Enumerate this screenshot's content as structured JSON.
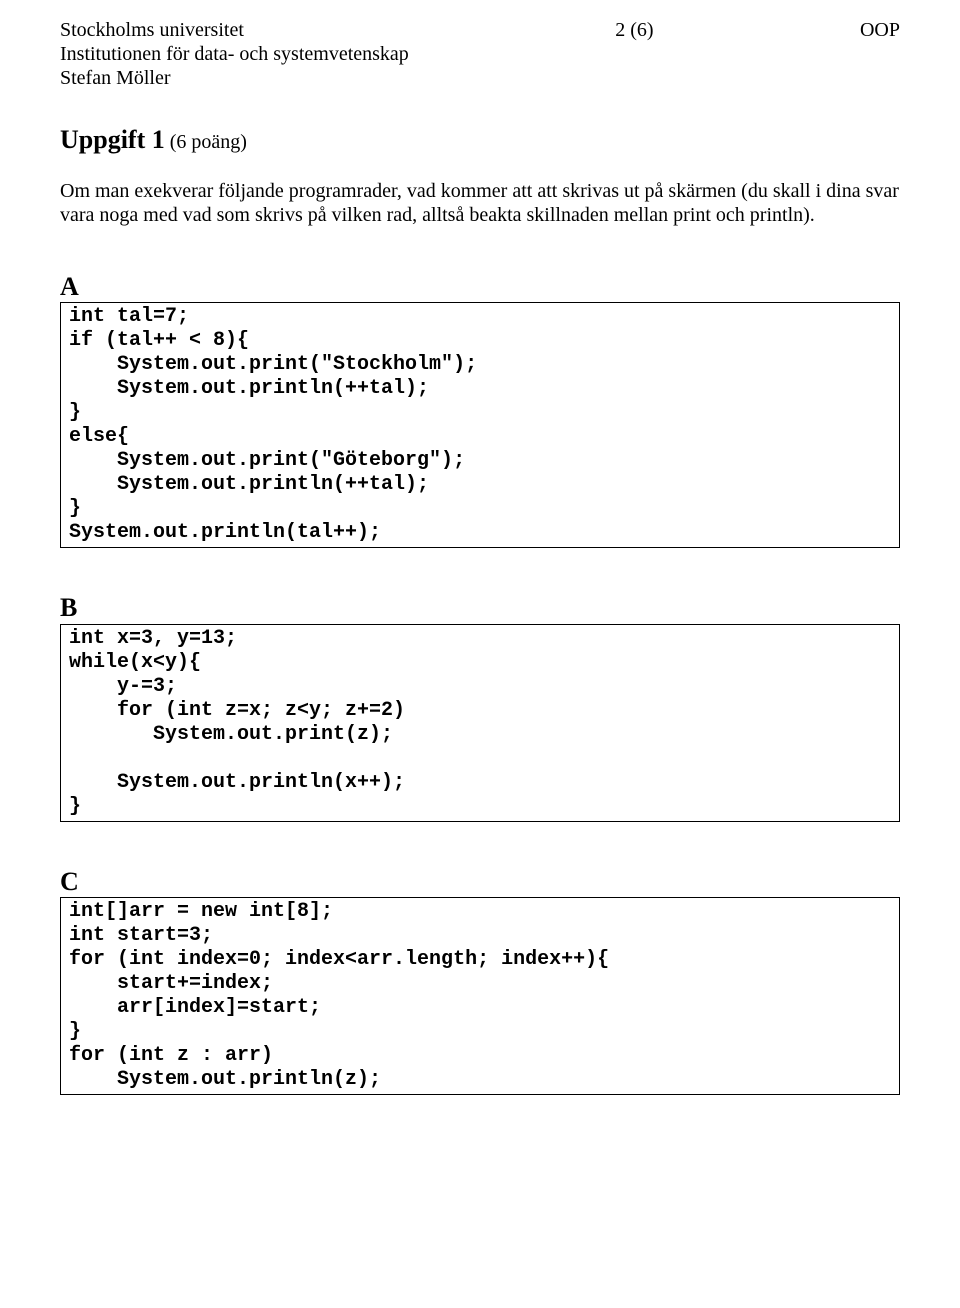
{
  "header": {
    "university": "Stockholms universitet",
    "department": "Institutionen för data- och systemvetenskap",
    "author": "Stefan Möller",
    "page": "2 (6)",
    "course": "OOP"
  },
  "title": {
    "bold": "Uppgift 1",
    "points": " (6 poäng)"
  },
  "intro": "Om man exekverar följande programrader, vad kommer att att skrivas ut på skärmen (du skall i dina svar vara noga med vad som skrivs på vilken rad, alltså beakta skillnaden mellan print och println).",
  "sections": {
    "A": {
      "label": "A",
      "code": "int tal=7;\nif (tal++ < 8){\n    System.out.print(\"Stockholm\");\n    System.out.println(++tal);\n}\nelse{\n    System.out.print(\"Göteborg\");\n    System.out.println(++tal);\n}\nSystem.out.println(tal++);"
    },
    "B": {
      "label": "B",
      "code": "int x=3, y=13;\nwhile(x<y){\n    y-=3;\n    for (int z=x; z<y; z+=2)\n       System.out.print(z);\n\n    System.out.println(x++);\n}"
    },
    "C": {
      "label": "C",
      "code": "int[]arr = new int[8];\nint start=3;\nfor (int index=0; index<arr.length; index++){\n    start+=index;\n    arr[index]=start;\n}\nfor (int z : arr)\n    System.out.println(z);"
    }
  }
}
